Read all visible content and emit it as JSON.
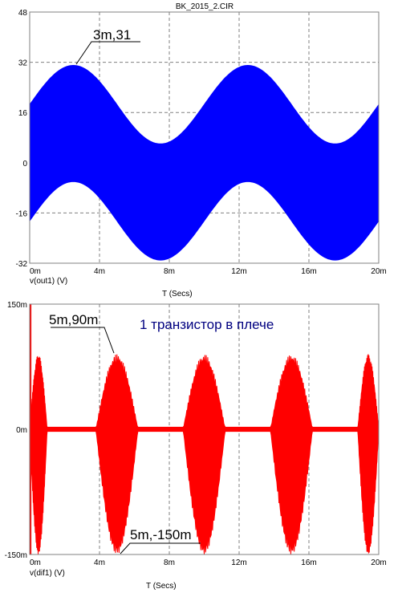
{
  "chart_data": [
    {
      "type": "line",
      "title": "BK_2015_2.CIR",
      "xlabel": "T (Secs)",
      "trace_label": "v(out1) (V)",
      "xlim": [
        0,
        20
      ],
      "ylim": [
        -32,
        48
      ],
      "x_ticks": [
        "0m",
        "4m",
        "8m",
        "12m",
        "16m",
        "20m"
      ],
      "y_ticks": [
        "48",
        "32",
        "16",
        "0",
        "-16",
        "-32"
      ],
      "grid": true,
      "color": "#0000ff",
      "series": [
        {
          "x_ms": [
            0,
            2.5,
            7.5,
            12.5,
            17.5,
            20
          ],
          "upper": [
            12,
            31,
            -6,
            31,
            -6,
            12
          ],
          "lower": [
            -12,
            6,
            -31,
            6,
            -31,
            -12
          ]
        }
      ],
      "annotations": [
        {
          "text": "3m,31",
          "x": 2.5,
          "y": 31
        }
      ]
    },
    {
      "type": "line",
      "xlabel": "T (Secs)",
      "trace_label": "v(dif1) (V)",
      "xlim": [
        0,
        20
      ],
      "ylim": [
        -150,
        150
      ],
      "x_ticks": [
        "0m",
        "4m",
        "8m",
        "12m",
        "16m",
        "20m"
      ],
      "y_ticks": [
        "150m",
        "0m",
        "-150m"
      ],
      "grid": true,
      "color": "#ff0000",
      "series": [
        {
          "bursts_ms": [
            [
              0,
              1
            ],
            [
              3.8,
              6.2
            ],
            [
              8.8,
              11.2
            ],
            [
              13.8,
              16.2
            ],
            [
              18.8,
              20
            ]
          ],
          "peak": 90,
          "trough": -150
        }
      ],
      "annotations": [
        {
          "text": "5m,90m",
          "x": 5,
          "y": 90
        },
        {
          "text": "5m,-150m",
          "x": 5,
          "y": -150
        }
      ],
      "note": "1 транзистор в плече"
    }
  ]
}
